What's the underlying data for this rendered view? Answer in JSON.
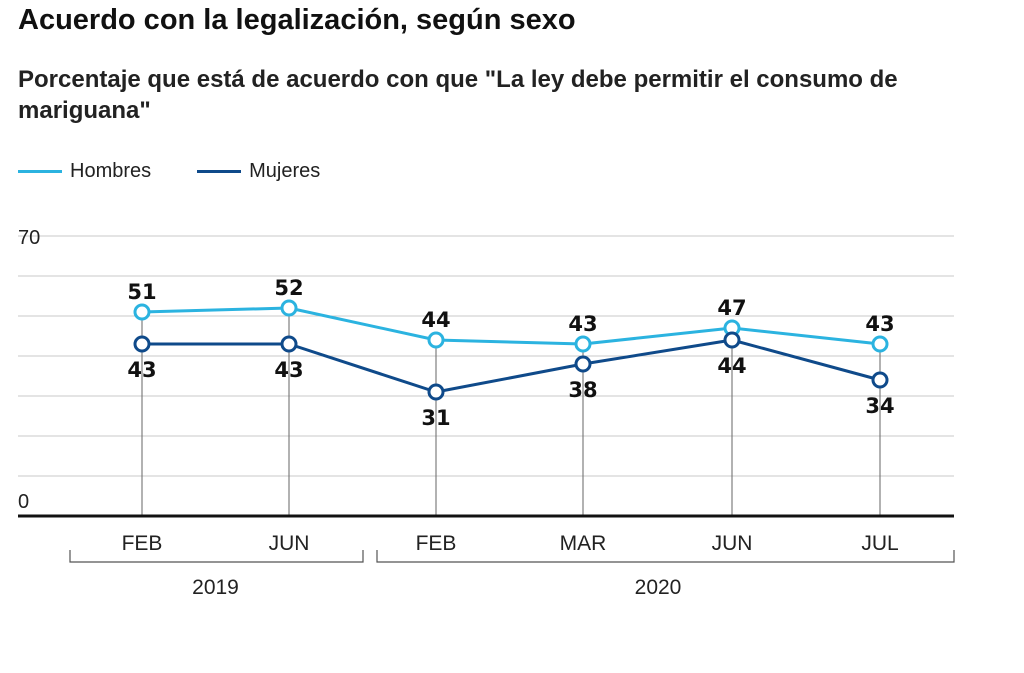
{
  "chart_data": {
    "type": "line",
    "title": "Acuerdo con la legalización, según sexo",
    "subtitle": "Porcentaje que está de acuerdo con que \"La ley debe permitir el consumo de mariguana\"",
    "categories": [
      "FEB",
      "JUN",
      "FEB",
      "MAR",
      "JUN",
      "JUL"
    ],
    "years": [
      {
        "label": "2019",
        "from": 0,
        "to": 1
      },
      {
        "label": "2020",
        "from": 2,
        "to": 5
      }
    ],
    "series": [
      {
        "name": "Hombres",
        "color": "#2bb3e0",
        "values": [
          51,
          52,
          44,
          43,
          47,
          43
        ]
      },
      {
        "name": "Mujeres",
        "color": "#0f4a8a",
        "values": [
          43,
          43,
          31,
          38,
          44,
          34
        ]
      }
    ],
    "ylim": [
      0,
      70
    ],
    "yticks": [
      0,
      70
    ],
    "grid": true,
    "legend": "top-left"
  }
}
